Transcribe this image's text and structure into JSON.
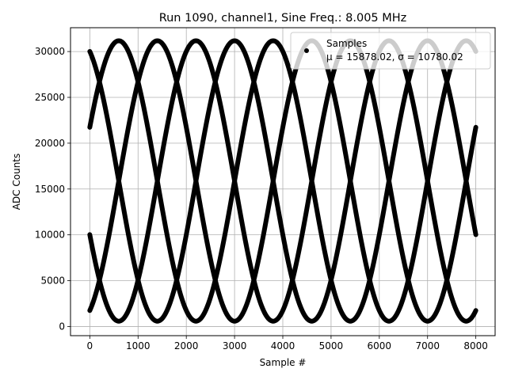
{
  "chart_data": {
    "type": "scatter",
    "title": "Run 1090, channel1, Sine Freq.: 8.005 MHz",
    "xlabel": "Sample #",
    "ylabel": "ADC Counts",
    "xlim": [
      -400,
      8400
    ],
    "ylim": [
      -1000,
      32600
    ],
    "xticks": [
      0,
      1000,
      2000,
      3000,
      4000,
      5000,
      6000,
      7000,
      8000
    ],
    "yticks": [
      0,
      5000,
      10000,
      15000,
      20000,
      25000,
      30000
    ],
    "grid": true,
    "legend": {
      "placement": "top-right",
      "entries": [
        {
          "name": "Samples",
          "stats": "μ = 15878.02, σ = 10780.02"
        }
      ]
    },
    "series": [
      {
        "name": "Samples",
        "marker_color": "#000000",
        "model": {
          "center": 15878,
          "amplitude": 15300,
          "period_samples": 3200,
          "peak_sample": 600,
          "phase_offsets_samples": [
            0,
            800,
            1600,
            2400
          ]
        },
        "x_range": [
          0,
          8000
        ]
      }
    ]
  }
}
